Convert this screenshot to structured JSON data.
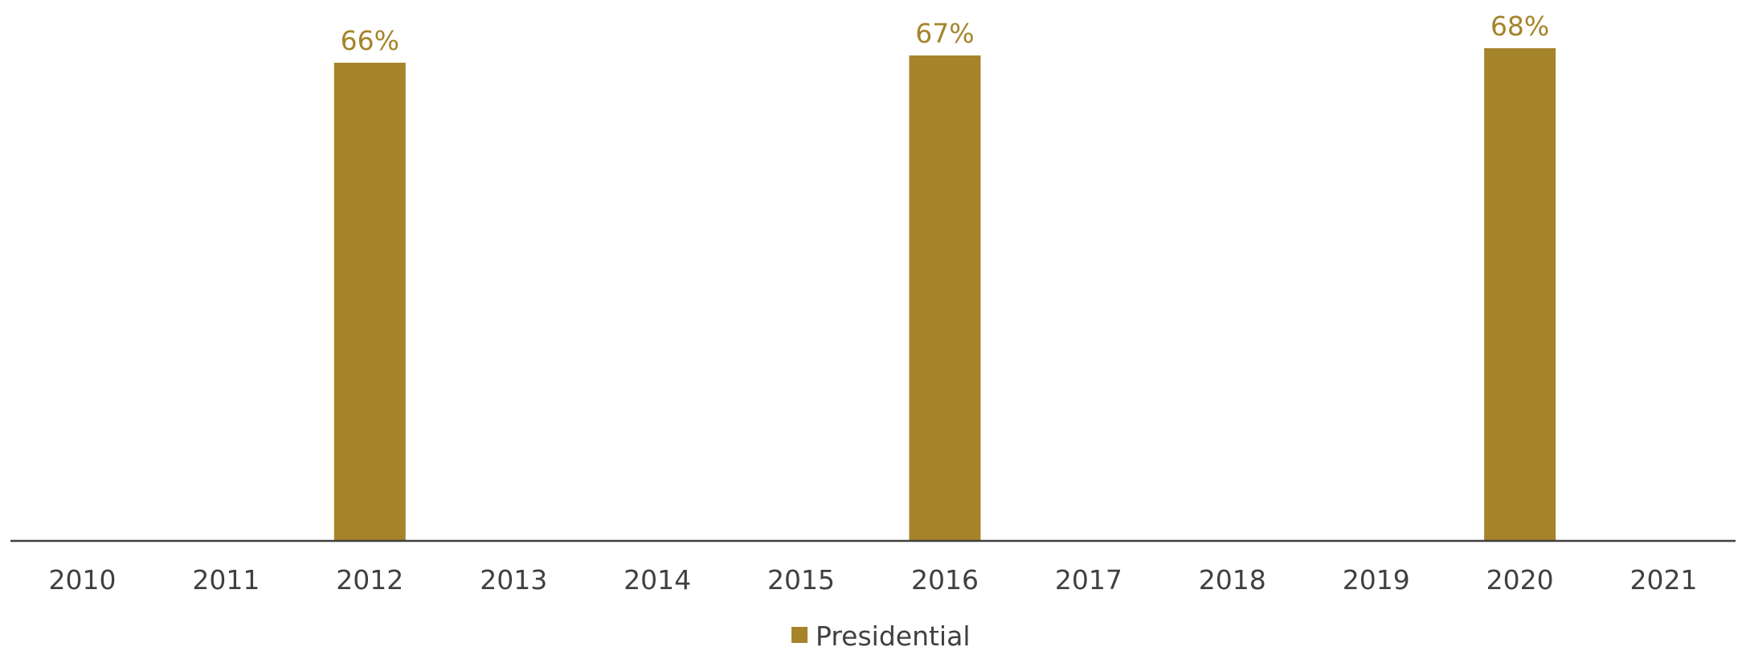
{
  "chart_data": {
    "type": "bar",
    "categories": [
      "2010",
      "2011",
      "2012",
      "2013",
      "2014",
      "2015",
      "2016",
      "2017",
      "2018",
      "2019",
      "2020",
      "2021"
    ],
    "series": [
      {
        "name": "Presidential",
        "color": "#A5842A",
        "values": [
          null,
          null,
          66,
          null,
          null,
          null,
          67,
          null,
          null,
          null,
          68,
          null
        ],
        "labels": [
          "",
          "",
          "66%",
          "",
          "",
          "",
          "67%",
          "",
          "",
          "",
          "68%",
          ""
        ]
      }
    ],
    "title": "",
    "xlabel": "",
    "ylabel": "",
    "ylim": [
      0,
      68
    ],
    "grid": false,
    "legend_position": "bottom-center",
    "axis_color": "#404040",
    "text_color": "#404040"
  }
}
